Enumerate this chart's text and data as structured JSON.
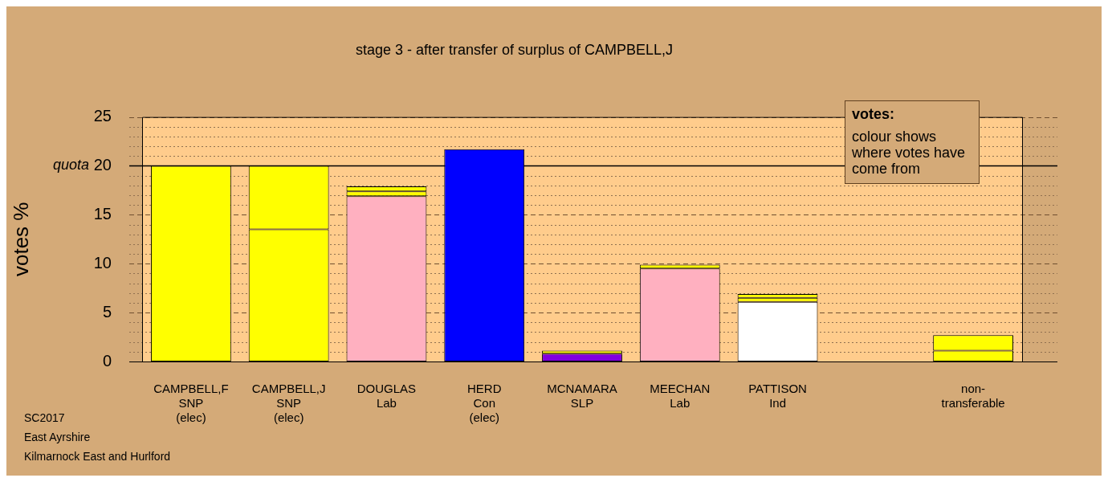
{
  "chart_data": {
    "type": "bar",
    "stacked": true,
    "title": "stage 3 - after transfer of surplus of CAMPBELL,J",
    "ylabel": "votes %",
    "categories": [
      "CAMPBELL,F\nSNP\n(elec)",
      "CAMPBELL,J\nSNP\n(elec)",
      "DOUGLAS\nLab",
      "HERD\nCon\n(elec)",
      "MCNAMARA\nSLP",
      "MEECHAN\nLab",
      "PATTISON\nInd",
      null,
      "non-\ntransferable"
    ],
    "series": [
      {
        "values": [
          20,
          13.5,
          16.9,
          21.7,
          0.8,
          9.5,
          6.1,
          null,
          1.1
        ],
        "colors": [
          "#ffff00",
          "#ffff00",
          "#ffb0c0",
          "#0000ff",
          "#8000e0",
          "#ffb0c0",
          "#ffffff",
          "#ffff00",
          "#ffff00"
        ]
      },
      {
        "values": [
          null,
          6.5,
          0.5,
          null,
          0.3,
          0.4,
          0.4,
          null,
          1.6
        ],
        "color": "#ffff00"
      },
      {
        "values": [
          null,
          null,
          0.5,
          null,
          null,
          null,
          0.4,
          null,
          null
        ],
        "color": "#ffff00"
      }
    ],
    "ylim": [
      0,
      25
    ],
    "yticks": [
      0,
      {
        "value": 1,
        "label": null
      },
      {
        "value": 2,
        "label": null
      },
      {
        "value": 3,
        "label": null
      },
      {
        "value": 4,
        "label": null
      },
      5,
      {
        "value": 6,
        "label": null
      },
      {
        "value": 7,
        "label": null
      },
      {
        "value": 8,
        "label": null
      },
      {
        "value": 9,
        "label": null
      },
      10,
      {
        "value": 11,
        "label": null
      },
      {
        "value": 12,
        "label": null
      },
      {
        "value": 13,
        "label": null
      },
      {
        "value": 14,
        "label": null
      },
      15,
      {
        "value": 16,
        "label": null
      },
      {
        "value": 17,
        "label": null
      },
      {
        "value": 18,
        "label": null
      },
      {
        "value": 19,
        "label": null
      },
      20,
      {
        "value": 21,
        "label": null
      },
      {
        "value": 22,
        "label": null
      },
      {
        "value": 23,
        "label": null
      },
      {
        "value": 24,
        "label": null
      },
      25
    ],
    "grid": "y",
    "ref_lines": [
      {
        "axis": "y",
        "value": 20,
        "label": "quota",
        "color": "#000000"
      }
    ],
    "legend": false,
    "annotations": [
      "votes:",
      "colour shows where votes have come from",
      "SC2017",
      "East Ayrshire",
      "Kilmarnock East and Hurlford"
    ]
  }
}
